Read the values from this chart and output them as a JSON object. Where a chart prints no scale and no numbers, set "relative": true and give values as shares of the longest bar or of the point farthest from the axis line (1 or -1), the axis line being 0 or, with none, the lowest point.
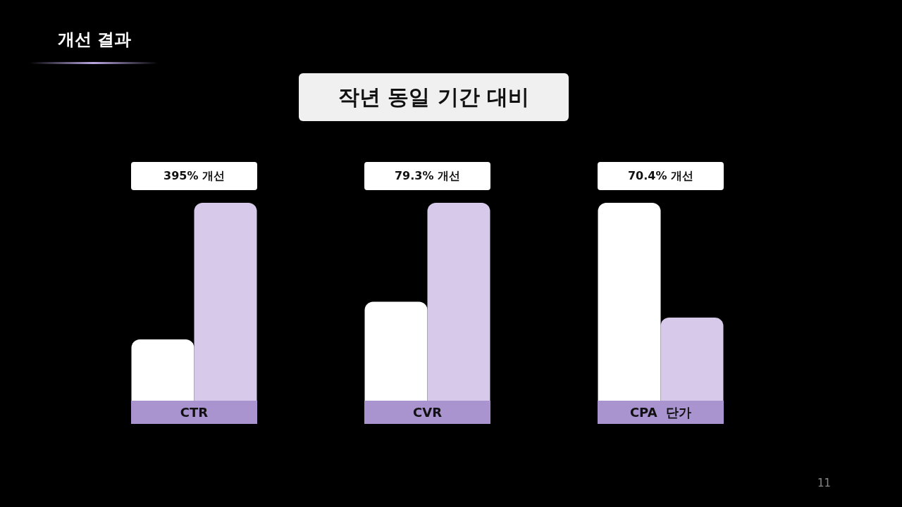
{
  "chart_data": {
    "type": "bar",
    "title": "개선 결과",
    "subtitle": "작년 동일 기간 대비",
    "categories": [
      "CTR",
      "CVR",
      "CPA  단가"
    ],
    "relative": true,
    "annotations": [
      "395% 개선",
      "79.3% 개선",
      "70.4% 개선",
      "11"
    ],
    "series": [
      {
        "color": "#ffffff",
        "values": [
          0.31,
          0.5,
          1
        ]
      },
      {
        "color": "#d6c9e9",
        "values": [
          1,
          1,
          0.42
        ]
      }
    ]
  }
}
